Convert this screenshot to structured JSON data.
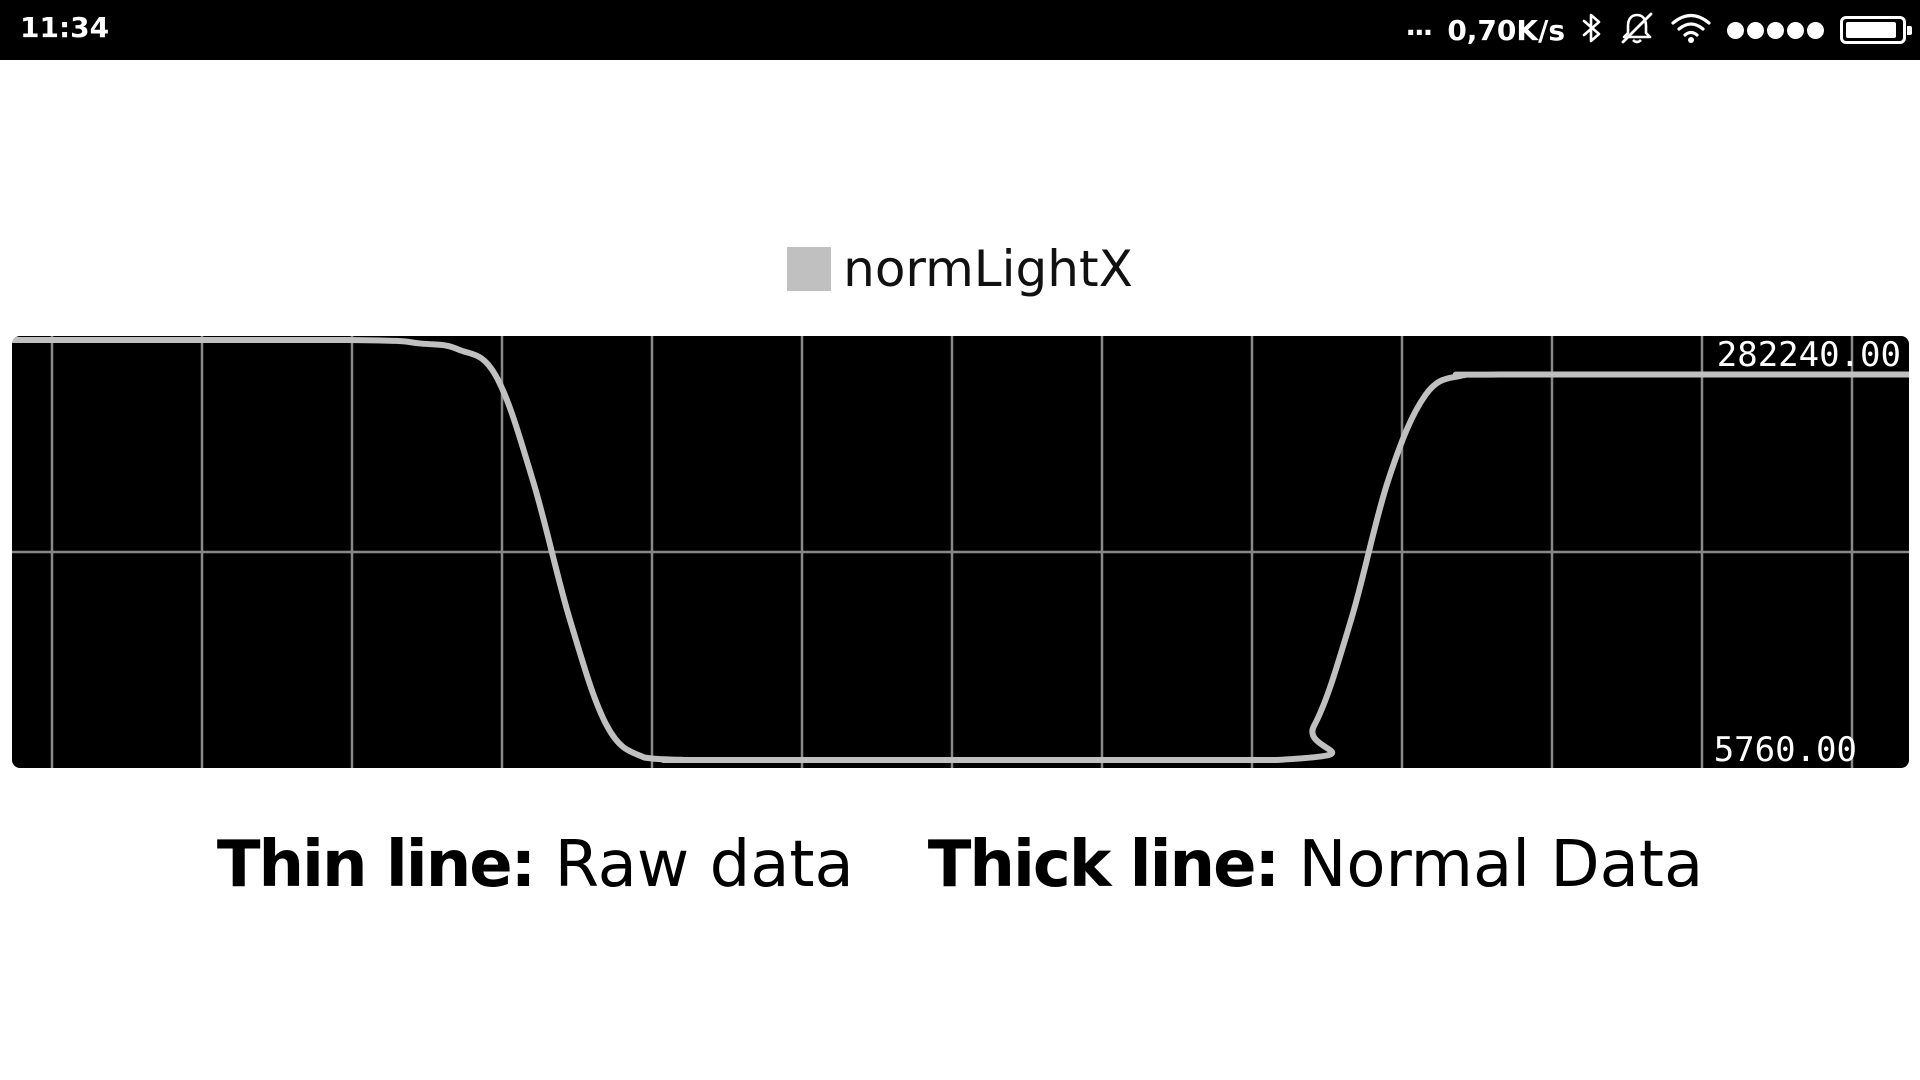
{
  "status_bar": {
    "time": "11:34",
    "more": "...",
    "speed": "0,70K/s",
    "icons": [
      "bluetooth-icon",
      "bell-muted-icon",
      "wifi-icon"
    ],
    "signal_bars": 5,
    "battery_level": 0.93
  },
  "legend": {
    "label": "normLightX",
    "color": "#c0c0c0"
  },
  "chart_data": {
    "type": "line",
    "series": [
      {
        "name": "normLightX",
        "x": [
          0,
          2.25,
          2.75,
          3.0,
          3.25,
          3.5,
          3.75,
          4.0,
          4.25,
          4.5,
          4.75,
          8.5,
          8.75,
          9.0,
          9.25,
          9.5,
          9.75,
          10.0,
          12.75
        ],
        "values": [
          282240,
          282240,
          279900,
          276000,
          259000,
          190000,
          98000,
          28000,
          7400,
          5900,
          5760,
          5760,
          28000,
          98000,
          190000,
          246000,
          259000,
          259500,
          259500
        ]
      }
    ],
    "xlim": [
      0,
      12.75
    ],
    "ylim": [
      5760,
      282240
    ],
    "y_labels": {
      "max": "282240.00",
      "min": "5760.00"
    },
    "grid": true,
    "grid_color": "#888888",
    "line_color": "#c0c0c0",
    "background": "#000000",
    "legend_position": "top-center"
  },
  "caption": {
    "thin_label": "Thin line:",
    "thin_value": "Raw data",
    "thick_label": "Thick line:",
    "thick_value": "Normal Data"
  }
}
